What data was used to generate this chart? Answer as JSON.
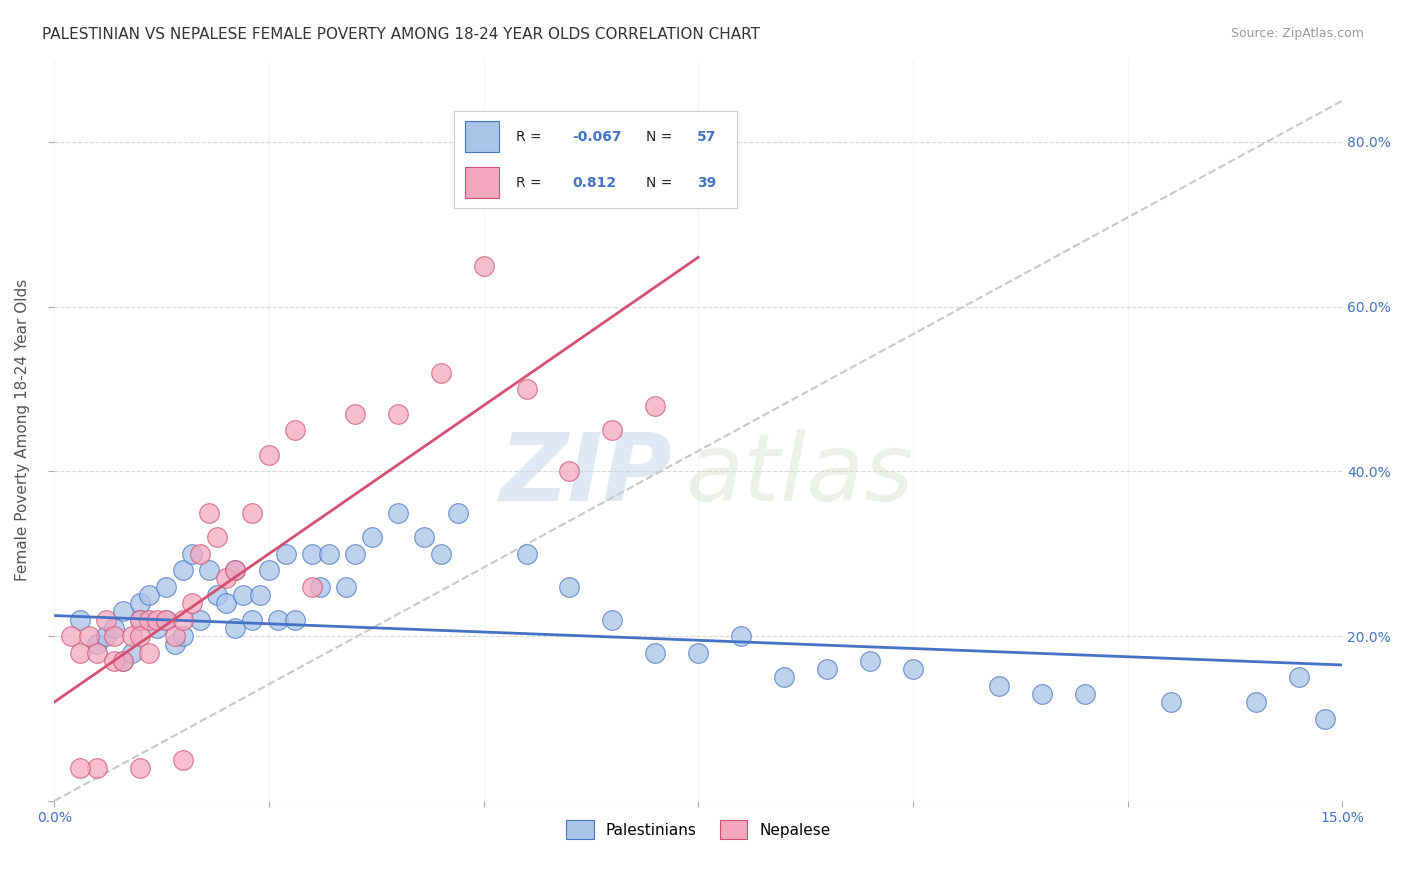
{
  "title": "PALESTINIAN VS NEPALESE FEMALE POVERTY AMONG 18-24 YEAR OLDS CORRELATION CHART",
  "source": "Source: ZipAtlas.com",
  "ylabel": "Female Poverty Among 18-24 Year Olds",
  "xlim": [
    0.0,
    15.0
  ],
  "ylim": [
    0.0,
    90.0
  ],
  "xticks": [
    0.0,
    2.5,
    5.0,
    7.5,
    10.0,
    12.5,
    15.0
  ],
  "yticks": [
    0,
    20,
    40,
    60,
    80
  ],
  "ytick_labels": [
    "",
    "20.0%",
    "40.0%",
    "60.0%",
    "80.0%"
  ],
  "r_blue": -0.067,
  "n_blue": 57,
  "r_pink": 0.812,
  "n_pink": 39,
  "blue_color": "#aac4e8",
  "pink_color": "#f4a8c0",
  "blue_line_color": "#4472c4",
  "pink_line_color": "#d45070",
  "ref_line_color": "#c8c8c8",
  "grid_color": "#d8d8d8",
  "watermark_zip": "ZIP",
  "watermark_atlas": "atlas",
  "blue_scatter_x": [
    0.3,
    0.5,
    0.6,
    0.7,
    0.8,
    0.8,
    0.9,
    1.0,
    1.0,
    1.1,
    1.2,
    1.3,
    1.3,
    1.4,
    1.5,
    1.5,
    1.6,
    1.7,
    1.8,
    1.9,
    2.0,
    2.1,
    2.1,
    2.2,
    2.3,
    2.4,
    2.5,
    2.6,
    2.7,
    2.8,
    3.0,
    3.1,
    3.2,
    3.4,
    3.5,
    3.7,
    4.0,
    4.3,
    4.5,
    4.7,
    5.5,
    6.0,
    6.5,
    7.0,
    7.5,
    8.0,
    8.5,
    9.0,
    9.5,
    10.0,
    11.0,
    11.5,
    12.0,
    13.0,
    14.0,
    14.5,
    14.8
  ],
  "blue_scatter_y": [
    22,
    19,
    20,
    21,
    17,
    23,
    18,
    24,
    22,
    25,
    21,
    26,
    22,
    19,
    28,
    20,
    30,
    22,
    28,
    25,
    24,
    21,
    28,
    25,
    22,
    25,
    28,
    22,
    30,
    22,
    30,
    26,
    30,
    26,
    30,
    32,
    35,
    32,
    30,
    35,
    30,
    26,
    22,
    18,
    18,
    20,
    15,
    16,
    17,
    16,
    14,
    13,
    13,
    12,
    12,
    15,
    10
  ],
  "pink_scatter_x": [
    0.2,
    0.3,
    0.4,
    0.5,
    0.6,
    0.7,
    0.7,
    0.8,
    0.9,
    1.0,
    1.0,
    1.1,
    1.1,
    1.2,
    1.3,
    1.4,
    1.5,
    1.6,
    1.7,
    1.8,
    1.9,
    2.0,
    2.1,
    2.3,
    2.5,
    2.8,
    3.0,
    3.5,
    4.0,
    4.5,
    5.0,
    5.5,
    6.0,
    6.5,
    7.0,
    0.5,
    1.0,
    1.5,
    0.3
  ],
  "pink_scatter_y": [
    20,
    18,
    20,
    18,
    22,
    17,
    20,
    17,
    20,
    22,
    20,
    22,
    18,
    22,
    22,
    20,
    22,
    24,
    30,
    35,
    32,
    27,
    28,
    35,
    42,
    45,
    26,
    47,
    47,
    52,
    65,
    50,
    40,
    45,
    48,
    4,
    4,
    5,
    4
  ]
}
